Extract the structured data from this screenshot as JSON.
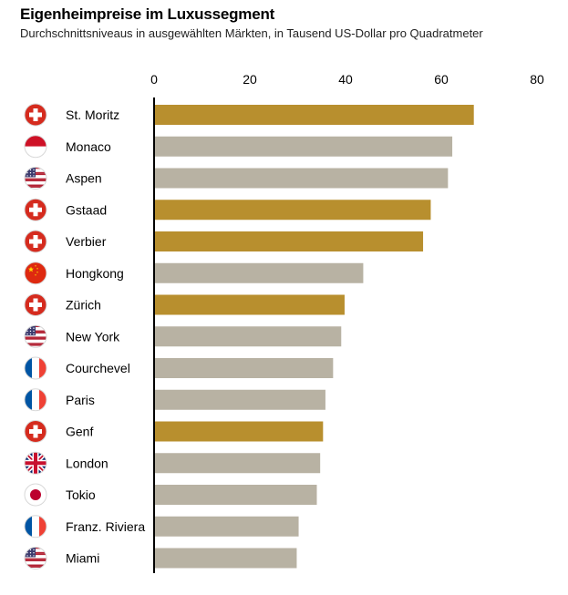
{
  "header": {
    "title": "Eigenheimpreise im Luxussegment",
    "subtitle": "Durchschnittsniveaus in ausgewählten Märkten, in Tausend US-Dollar pro Quadratmeter"
  },
  "colors": {
    "highlight": "#B88F2E",
    "neutral": "#B8B2A3",
    "axis": "#000000"
  },
  "chart_data": {
    "type": "bar",
    "orientation": "horizontal",
    "title": "Eigenheimpreise im Luxussegment",
    "subtitle": "Durchschnittsniveaus in ausgewählten Märkten, in Tausend US-Dollar pro Quadratmeter",
    "xlim": [
      0,
      80
    ],
    "xticks": [
      0,
      20,
      40,
      60,
      80
    ],
    "grid": false,
    "categories": [
      "St. Moritz",
      "Monaco",
      "Aspen",
      "Gstaad",
      "Verbier",
      "Hongkong",
      "Zürich",
      "New York",
      "Courchevel",
      "Paris",
      "Genf",
      "London",
      "Tokio",
      "Franz. Riviera",
      "Miami"
    ],
    "values": [
      66.8,
      62.3,
      61.4,
      57.8,
      56.2,
      43.7,
      39.8,
      39.1,
      37.4,
      35.8,
      35.3,
      34.7,
      34.0,
      30.2,
      29.8
    ],
    "highlighted": [
      true,
      false,
      false,
      true,
      true,
      false,
      true,
      false,
      false,
      false,
      true,
      false,
      false,
      false,
      false
    ],
    "flags": [
      "switzerland-flag-icon",
      "monaco-flag-icon",
      "usa-flag-icon",
      "switzerland-flag-icon",
      "switzerland-flag-icon",
      "china-flag-icon",
      "switzerland-flag-icon",
      "usa-flag-icon",
      "france-flag-icon",
      "france-flag-icon",
      "switzerland-flag-icon",
      "uk-flag-icon",
      "japan-flag-icon",
      "france-flag-icon",
      "usa-flag-icon"
    ]
  }
}
